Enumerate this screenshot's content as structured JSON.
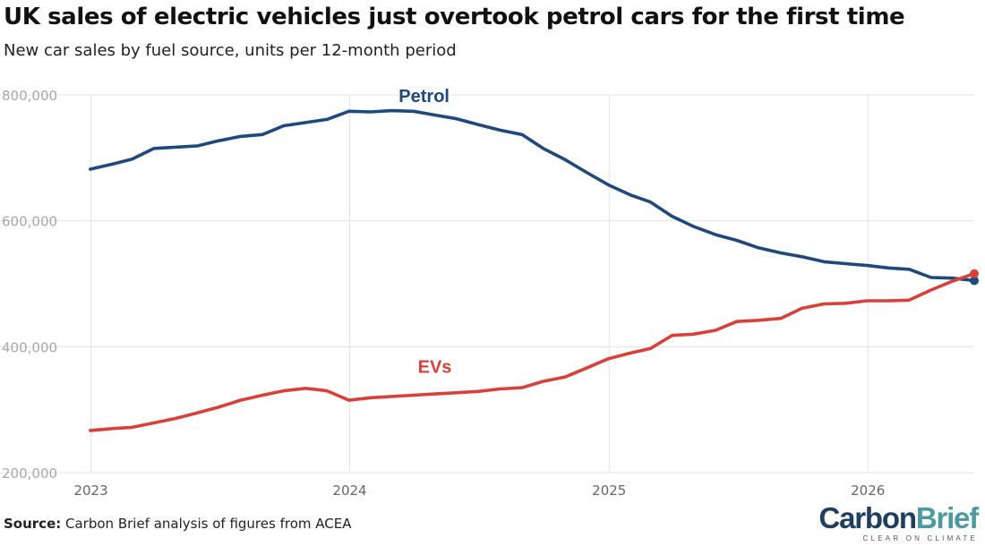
{
  "header": {
    "title": "UK sales of electric vehicles just overtook petrol cars for the first time",
    "subtitle": "New car sales by fuel source, units per 12-month period"
  },
  "footer": {
    "source_label": "Source:",
    "source_text": " Carbon Brief analysis of figures from ACEA",
    "brand_part1": "Carbon",
    "brand_part2": "Brief",
    "brand_tagline": "CLEAR ON CLIMATE"
  },
  "colors": {
    "petrol": "#1f497d",
    "evs": "#d9403a",
    "grid": "#e3e3e3",
    "tick_text": "#a8a8a8",
    "brand_dark": "#1f3f5f",
    "brand_accent": "#4a9a9f"
  },
  "chart_data": {
    "type": "line",
    "title": "UK sales of electric vehicles just overtook petrol cars for the first time",
    "subtitle": "New car sales by fuel source, units per 12-month period",
    "xlabel": "",
    "ylabel": "",
    "ylim": [
      200000,
      800000
    ],
    "xlim": [
      "2022-12-01",
      "2026-05-31"
    ],
    "yticks": [
      200000,
      400000,
      600000,
      800000
    ],
    "ytick_labels": [
      "200,000",
      "400,000",
      "600,000",
      "800,000"
    ],
    "xticks": [
      "2023-01-01",
      "2024-01-01",
      "2025-01-01",
      "2026-01-01"
    ],
    "xtick_labels": [
      "2023",
      "2024",
      "2025",
      "2026"
    ],
    "grid": true,
    "legend": "direct labels on lines",
    "x": [
      "2022-12-31",
      "2023-01-31",
      "2023-02-28",
      "2023-03-31",
      "2023-04-30",
      "2023-05-31",
      "2023-06-30",
      "2023-07-31",
      "2023-08-31",
      "2023-09-30",
      "2023-10-31",
      "2023-11-30",
      "2023-12-31",
      "2024-01-31",
      "2024-02-29",
      "2024-03-31",
      "2024-04-30",
      "2024-05-31",
      "2024-06-30",
      "2024-07-31",
      "2024-08-31",
      "2024-09-30",
      "2024-10-31",
      "2024-11-30",
      "2024-12-31",
      "2025-01-31",
      "2025-02-28",
      "2025-03-31",
      "2025-04-30",
      "2025-05-31",
      "2025-06-30",
      "2025-07-31",
      "2025-08-31",
      "2025-09-30",
      "2025-10-31",
      "2025-11-30",
      "2025-12-31",
      "2026-01-31",
      "2026-02-28",
      "2026-03-31",
      "2026-04-30",
      "2026-05-31"
    ],
    "series": [
      {
        "name": "Petrol",
        "values": [
          682000,
          690000,
          698000,
          715000,
          717000,
          719000,
          727000,
          734000,
          737000,
          751000,
          756000,
          761000,
          774000,
          773000,
          775000,
          774000,
          768000,
          762000,
          753000,
          744000,
          737000,
          715000,
          697000,
          677000,
          657000,
          641000,
          630000,
          607000,
          591000,
          578000,
          569000,
          557000,
          549000,
          543000,
          535000,
          532000,
          529000,
          525000,
          523000,
          510000,
          509000,
          505000
        ]
      },
      {
        "name": "EVs",
        "values": [
          267000,
          270000,
          272000,
          279000,
          286000,
          295000,
          304000,
          315000,
          323000,
          330000,
          334000,
          330000,
          315000,
          319000,
          321000,
          323000,
          325000,
          327000,
          329000,
          333000,
          335000,
          345000,
          352000,
          366000,
          381000,
          390000,
          397000,
          418000,
          420000,
          426000,
          440000,
          442000,
          445000,
          461000,
          468000,
          469000,
          473000,
          473000,
          474000,
          490000,
          504000,
          516000
        ]
      }
    ]
  }
}
